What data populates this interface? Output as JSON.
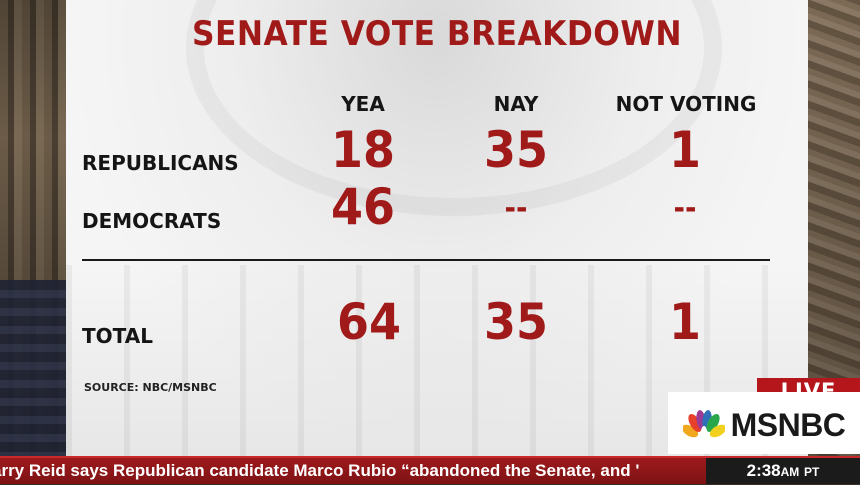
{
  "graphic": {
    "title": "SENATE VOTE BREAKDOWN",
    "columns": [
      "YEA",
      "NAY",
      "NOT VOTING"
    ],
    "rows": [
      {
        "label": "REPUBLICANS",
        "values": [
          "18",
          "35",
          "1"
        ]
      },
      {
        "label": "DEMOCRATS",
        "values": [
          "46",
          "--",
          "--"
        ]
      }
    ],
    "total": {
      "label": "TOTAL",
      "values": [
        "64",
        "35",
        "1"
      ]
    },
    "source": "SOURCE: NBC/MSNBC"
  },
  "bug": {
    "live_label": "LIVE",
    "network": "MSNBC",
    "icon": "peacock-logo-icon"
  },
  "ticker": {
    "text": "arry Reid says Republican candidate Marco Rubio  “abandoned the Senate, and '",
    "time": "2:38",
    "meridiem": "AM",
    "timezone": "PT"
  },
  "colors": {
    "accent_red": "#a11a1a",
    "live_red": "#b5161b",
    "ticker_red": "#9e1a1c"
  }
}
